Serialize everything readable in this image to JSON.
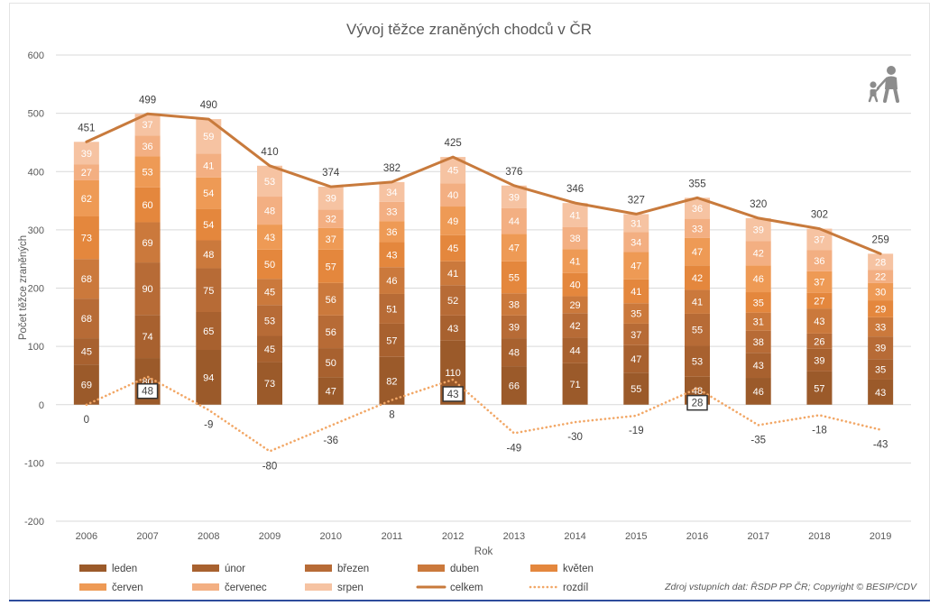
{
  "icons": {
    "corner": "pedestrians-icon"
  },
  "source_note": "Zdroj vstupních dat: ŘSDP PP ČR; Copyright © BESIP/CDV",
  "chart_data": {
    "type": "bar",
    "stacked": true,
    "title": "Vývoj těžce zraněných chodců v ČR",
    "xlabel": "Rok",
    "ylabel": "Počet těžce zraněných",
    "ylim": [
      -200,
      600
    ],
    "yticks": [
      600,
      500,
      400,
      300,
      200,
      100,
      0,
      -100,
      -200
    ],
    "grid": true,
    "legend": "bottom",
    "categories": [
      "2006",
      "2007",
      "2008",
      "2009",
      "2010",
      "2011",
      "2012",
      "2013",
      "2014",
      "2015",
      "2016",
      "2017",
      "2018",
      "2019"
    ],
    "series": [
      {
        "name": "leden",
        "type": "bar",
        "color": "#9B5A2A",
        "values": [
          69,
          80,
          94,
          73,
          47,
          82,
          110,
          66,
          71,
          55,
          48,
          46,
          57,
          43
        ]
      },
      {
        "name": "únor",
        "type": "bar",
        "color": "#A8612F",
        "values": [
          45,
          74,
          65,
          45,
          50,
          57,
          43,
          48,
          44,
          47,
          53,
          43,
          39,
          35
        ]
      },
      {
        "name": "březen",
        "type": "bar",
        "color": "#B76B36",
        "values": [
          68,
          90,
          75,
          53,
          56,
          51,
          52,
          39,
          42,
          37,
          55,
          38,
          26,
          39
        ]
      },
      {
        "name": "duben",
        "type": "bar",
        "color": "#CB793C",
        "values": [
          68,
          69,
          48,
          45,
          56,
          46,
          41,
          38,
          29,
          35,
          41,
          31,
          43,
          33
        ]
      },
      {
        "name": "květen",
        "type": "bar",
        "color": "#E4873D",
        "values": [
          73,
          60,
          54,
          50,
          57,
          43,
          45,
          55,
          40,
          41,
          42,
          35,
          27,
          29
        ]
      },
      {
        "name": "červen",
        "type": "bar",
        "color": "#EE9A55",
        "values": [
          62,
          53,
          54,
          43,
          37,
          36,
          49,
          47,
          41,
          47,
          47,
          46,
          37,
          30
        ]
      },
      {
        "name": "červenec",
        "type": "bar",
        "color": "#F3AF82",
        "values": [
          27,
          36,
          41,
          48,
          32,
          33,
          40,
          44,
          38,
          34,
          33,
          42,
          36,
          22
        ]
      },
      {
        "name": "srpen",
        "type": "bar",
        "color": "#F6C3A2",
        "values": [
          39,
          37,
          59,
          53,
          39,
          34,
          45,
          39,
          41,
          31,
          36,
          39,
          37,
          28
        ]
      },
      {
        "name": "celkem",
        "type": "line",
        "style": "solid",
        "color": "#C87A3C",
        "values": [
          451,
          499,
          490,
          410,
          374,
          382,
          425,
          376,
          346,
          327,
          355,
          320,
          302,
          259
        ]
      },
      {
        "name": "rozdíl",
        "type": "line",
        "style": "dotted",
        "color": "#F2A766",
        "values": [
          0,
          48,
          -9,
          -80,
          -36,
          8,
          43,
          -49,
          -30,
          -19,
          28,
          -35,
          -18,
          -43
        ]
      }
    ]
  }
}
